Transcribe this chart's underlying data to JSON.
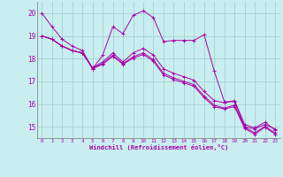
{
  "xlabel": "Windchill (Refroidissement éolien,°C)",
  "bg_color": "#c8eef0",
  "grid_color": "#a0ccc8",
  "line_color": "#aa00aa",
  "spine_color": "#888888",
  "xlim": [
    -0.5,
    23.5
  ],
  "ylim": [
    14.5,
    20.5
  ],
  "yticks": [
    15,
    16,
    17,
    18,
    19,
    20
  ],
  "xticks": [
    0,
    1,
    2,
    3,
    4,
    5,
    6,
    7,
    8,
    9,
    10,
    11,
    12,
    13,
    14,
    15,
    16,
    17,
    18,
    19,
    20,
    21,
    22,
    23
  ],
  "series": [
    [
      20.0,
      19.4,
      18.85,
      18.55,
      18.35,
      17.55,
      18.15,
      19.4,
      19.1,
      19.9,
      20.1,
      19.8,
      18.75,
      18.8,
      18.8,
      18.8,
      19.05,
      17.45,
      16.1,
      16.1,
      15.0,
      14.9,
      15.1,
      14.9
    ],
    [
      19.0,
      18.85,
      18.55,
      18.35,
      18.25,
      17.6,
      17.85,
      18.25,
      17.85,
      18.25,
      18.45,
      18.15,
      17.55,
      17.35,
      17.2,
      17.05,
      16.55,
      16.15,
      16.05,
      16.15,
      15.1,
      14.95,
      15.2,
      14.85
    ],
    [
      19.0,
      18.85,
      18.55,
      18.35,
      18.25,
      17.58,
      17.78,
      18.15,
      17.78,
      18.08,
      18.25,
      17.95,
      17.35,
      17.15,
      17.0,
      16.85,
      16.35,
      15.95,
      15.82,
      15.95,
      14.98,
      14.73,
      15.02,
      14.73
    ],
    [
      19.0,
      18.85,
      18.55,
      18.35,
      18.25,
      17.55,
      17.75,
      18.1,
      17.75,
      18.02,
      18.18,
      17.88,
      17.28,
      17.08,
      16.93,
      16.78,
      16.28,
      15.88,
      15.78,
      15.88,
      14.92,
      14.67,
      14.98,
      14.67
    ]
  ]
}
